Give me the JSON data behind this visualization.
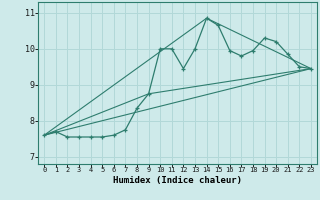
{
  "xlabel": "Humidex (Indice chaleur)",
  "ylabel": "",
  "bg_color": "#ceeaea",
  "grid_color": "#b2d8d8",
  "line_color": "#2e7d6e",
  "xlim": [
    -0.5,
    23.5
  ],
  "ylim": [
    6.8,
    11.3
  ],
  "xticks": [
    0,
    1,
    2,
    3,
    4,
    5,
    6,
    7,
    8,
    9,
    10,
    11,
    12,
    13,
    14,
    15,
    16,
    17,
    18,
    19,
    20,
    21,
    22,
    23
  ],
  "yticks": [
    7,
    8,
    9,
    10,
    11
  ],
  "main_x": [
    0,
    1,
    2,
    3,
    4,
    5,
    6,
    7,
    8,
    9,
    10,
    11,
    12,
    13,
    14,
    15,
    16,
    17,
    18,
    19,
    20,
    21,
    22,
    23
  ],
  "main_y": [
    7.6,
    7.7,
    7.55,
    7.55,
    7.55,
    7.55,
    7.6,
    7.75,
    8.35,
    8.75,
    10.0,
    10.0,
    9.45,
    10.0,
    10.85,
    10.65,
    9.95,
    9.8,
    9.95,
    10.3,
    10.2,
    9.85,
    9.5,
    9.45
  ],
  "line2_x": [
    0,
    23
  ],
  "line2_y": [
    7.6,
    9.45
  ],
  "line3_x": [
    0,
    14,
    23
  ],
  "line3_y": [
    7.6,
    10.85,
    9.45
  ],
  "line4_x": [
    0,
    9,
    23
  ],
  "line4_y": [
    7.6,
    8.75,
    9.45
  ]
}
